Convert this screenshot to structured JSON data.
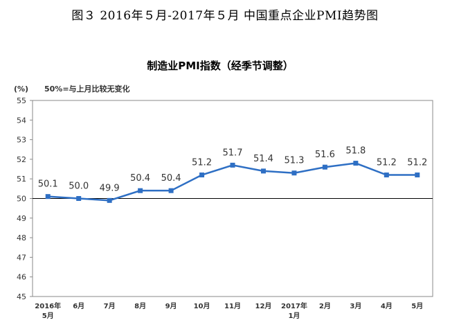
{
  "figure_title": "图３  2016年５月-2017年５月   中国重点企业PMI趋势图",
  "chart_data": {
    "type": "line",
    "title": "制造业PMI指数（经季节调整）",
    "ylabel": "(%)",
    "annotation": "50%=与上月比较无变化",
    "ylim": [
      45,
      55
    ],
    "yticks": [
      45,
      46,
      47,
      48,
      49,
      50,
      51,
      52,
      53,
      54,
      55
    ],
    "reference_line": 50,
    "categories": [
      [
        "2016年",
        "5月"
      ],
      [
        "6月"
      ],
      [
        "7月"
      ],
      [
        "8月"
      ],
      [
        "9月"
      ],
      [
        "10月"
      ],
      [
        "11月"
      ],
      [
        "12月"
      ],
      [
        "2017年",
        "1月"
      ],
      [
        "2月"
      ],
      [
        "3月"
      ],
      [
        "4月"
      ],
      [
        "5月"
      ]
    ],
    "series": [
      {
        "values": [
          50.1,
          50.0,
          49.9,
          50.4,
          50.4,
          51.2,
          51.7,
          51.4,
          51.3,
          51.6,
          51.8,
          51.2,
          51.2
        ],
        "labels": [
          "50.1",
          "50.0",
          "49.9",
          "50.4",
          "50.4",
          "51.2",
          "51.7",
          "51.4",
          "51.3",
          "51.6",
          "51.8",
          "51.2",
          "51.2"
        ],
        "color": "#2e6fc4"
      }
    ]
  }
}
